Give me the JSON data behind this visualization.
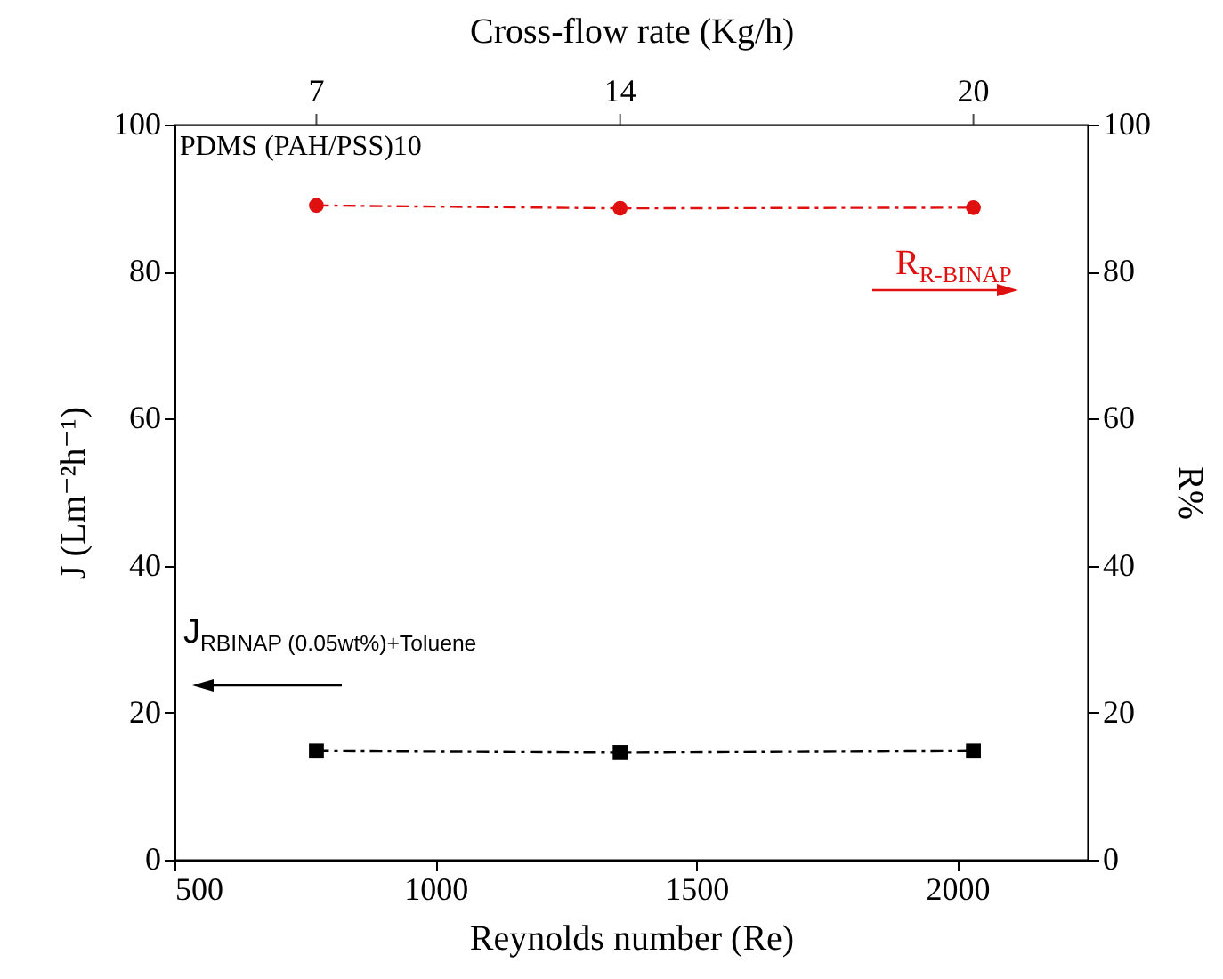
{
  "chart_data": {
    "type": "line",
    "x": [
      772,
      1354,
      2031
    ],
    "xlabel": "Reynolds number (Re)",
    "xlim": [
      500,
      2250
    ],
    "xticks": [
      500,
      1000,
      1500,
      2000
    ],
    "ylabel": "J (Lm⁻²h⁻¹)",
    "ylim": [
      0,
      100
    ],
    "yticks": [
      0,
      20,
      40,
      60,
      80,
      100
    ],
    "y2label": "R%",
    "y2lim": [
      0,
      100
    ],
    "y2ticks": [
      0,
      20,
      40,
      60,
      80,
      100
    ],
    "series": [
      {
        "color": "#000000",
        "marker": "square",
        "values": [
          14.8,
          14.6,
          14.8
        ]
      },
      {
        "color": "#e01010",
        "marker": "circle",
        "axis": "y2",
        "values": [
          89.0,
          88.6,
          88.7
        ]
      }
    ],
    "line_style": "dashed",
    "grid": false,
    "legend": false,
    "annotations": [
      "PDMS (PAH/PSS)10",
      "R$_{R-BINAP}$",
      "J$_{RBINAP (0.05wt%)+Toluene}$",
      "Cross-flow rate (Kg/h)",
      "7",
      "14",
      "20"
    ]
  }
}
